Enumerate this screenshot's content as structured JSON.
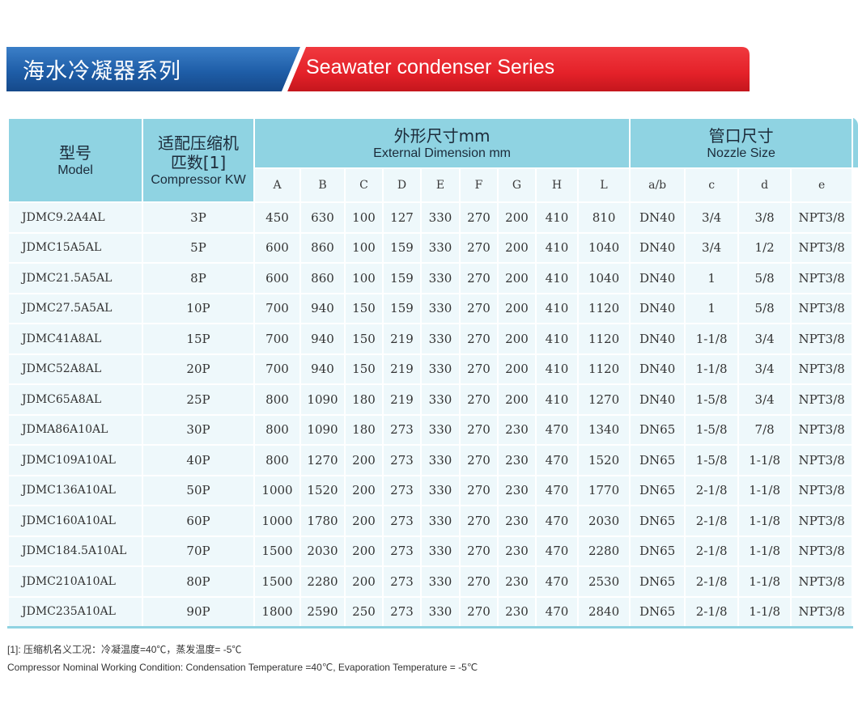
{
  "banner": {
    "title_cn": "海水冷凝器系列",
    "title_en": "Seawater condenser Series",
    "colors": {
      "left": "#1f5ea8",
      "right": "#e42129"
    }
  },
  "table": {
    "head": {
      "model_cn": "型号",
      "model_en": "Model",
      "compressor_cn": "适配压缩机匹数[1]",
      "compressor_en": "Compressor KW",
      "dimension_cn": "外形尺寸mm",
      "dimension_en": "External Dimension mm",
      "nozzle_cn": "管口尺寸",
      "nozzle_en": "Nozzle Size"
    },
    "dim_columns": [
      "A",
      "B",
      "C",
      "D",
      "E",
      "F",
      "G",
      "H",
      "L"
    ],
    "nozzle_columns": [
      "a/b",
      "c",
      "d",
      "e"
    ],
    "rows": [
      [
        "JDMC9.2A4AL",
        "3P",
        "450",
        "630",
        "100",
        "127",
        "330",
        "270",
        "200",
        "410",
        "810",
        "DN40",
        "3/4",
        "3/8",
        "NPT3/8"
      ],
      [
        "JDMC15A5AL",
        "5P",
        "600",
        "860",
        "100",
        "159",
        "330",
        "270",
        "200",
        "410",
        "1040",
        "DN40",
        "3/4",
        "1/2",
        "NPT3/8"
      ],
      [
        "JDMC21.5A5AL",
        "8P",
        "600",
        "860",
        "100",
        "159",
        "330",
        "270",
        "200",
        "410",
        "1040",
        "DN40",
        "1",
        "5/8",
        "NPT3/8"
      ],
      [
        "JDMC27.5A5AL",
        "10P",
        "700",
        "940",
        "150",
        "159",
        "330",
        "270",
        "200",
        "410",
        "1120",
        "DN40",
        "1",
        "5/8",
        "NPT3/8"
      ],
      [
        "JDMC41A8AL",
        "15P",
        "700",
        "940",
        "150",
        "219",
        "330",
        "270",
        "200",
        "410",
        "1120",
        "DN40",
        "1-1/8",
        "3/4",
        "NPT3/8"
      ],
      [
        "JDMC52A8AL",
        "20P",
        "700",
        "940",
        "150",
        "219",
        "330",
        "270",
        "200",
        "410",
        "1120",
        "DN40",
        "1-1/8",
        "3/4",
        "NPT3/8"
      ],
      [
        "JDMC65A8AL",
        "25P",
        "800",
        "1090",
        "180",
        "219",
        "330",
        "270",
        "200",
        "410",
        "1270",
        "DN40",
        "1-5/8",
        "3/4",
        "NPT3/8"
      ],
      [
        "JDMA86A10AL",
        "30P",
        "800",
        "1090",
        "180",
        "273",
        "330",
        "270",
        "230",
        "470",
        "1340",
        "DN65",
        "1-5/8",
        "7/8",
        "NPT3/8"
      ],
      [
        "JDMC109A10AL",
        "40P",
        "800",
        "1270",
        "200",
        "273",
        "330",
        "270",
        "230",
        "470",
        "1520",
        "DN65",
        "1-5/8",
        "1-1/8",
        "NPT3/8"
      ],
      [
        "JDMC136A10AL",
        "50P",
        "1000",
        "1520",
        "200",
        "273",
        "330",
        "270",
        "230",
        "470",
        "1770",
        "DN65",
        "2-1/8",
        "1-1/8",
        "NPT3/8"
      ],
      [
        "JDMC160A10AL",
        "60P",
        "1000",
        "1780",
        "200",
        "273",
        "330",
        "270",
        "230",
        "470",
        "2030",
        "DN65",
        "2-1/8",
        "1-1/8",
        "NPT3/8"
      ],
      [
        "JDMC184.5A10AL",
        "70P",
        "1500",
        "2030",
        "200",
        "273",
        "330",
        "270",
        "230",
        "470",
        "2280",
        "DN65",
        "2-1/8",
        "1-1/8",
        "NPT3/8"
      ],
      [
        "JDMC210A10AL",
        "80P",
        "1500",
        "2280",
        "200",
        "273",
        "330",
        "270",
        "230",
        "470",
        "2530",
        "DN65",
        "2-1/8",
        "1-1/8",
        "NPT3/8"
      ],
      [
        "JDMC235A10AL",
        "90P",
        "1800",
        "2590",
        "250",
        "273",
        "330",
        "270",
        "230",
        "470",
        "2840",
        "DN65",
        "2-1/8",
        "1-1/8",
        "NPT3/8"
      ]
    ]
  },
  "footnote": {
    "line_cn": "[1]: 压缩机名义工况：冷凝温度=40℃，蒸发温度= -5℃",
    "line_en": "Compressor Nominal Working Condition: Condensation Temperature =40℃, Evaporation Temperature = -5℃"
  }
}
